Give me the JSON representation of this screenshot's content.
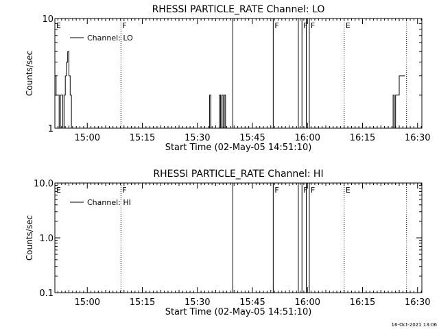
{
  "footer_timestamp": "16-Oct-2021 13:06",
  "chart_data": [
    {
      "type": "line",
      "title": "RHESSI PARTICLE_RATE Channel: LO",
      "xlabel": "Start Time (02-May-05 14:51:10)",
      "ylabel": "Counts/sec",
      "y_scale": "log",
      "ylim": [
        1,
        10
      ],
      "y_ticks": [
        "1",
        "10"
      ],
      "xlim": [
        "14:51:10",
        "16:31:10"
      ],
      "x_ticks": [
        "15:00",
        "15:15",
        "15:30",
        "15:45",
        "16:00",
        "16:15",
        "16:30"
      ],
      "legend": {
        "position": "top-left",
        "entries": [
          "Channel: LO"
        ]
      },
      "series": [
        {
          "name": "Channel: LO",
          "x": [
            "14:51:10",
            "14:51:30",
            "14:52:00",
            "14:52:20",
            "14:52:40",
            "14:53:00",
            "14:53:20",
            "14:53:40",
            "14:54:00",
            "14:54:20",
            "14:54:40",
            "14:55:00",
            "14:55:20",
            "14:55:40",
            "14:56:00",
            "15:33:00",
            "15:33:20",
            "15:33:40",
            "15:34:00",
            "15:34:20",
            "15:35:40",
            "15:36:00",
            "15:36:20",
            "15:36:40",
            "15:37:00",
            "15:37:20",
            "15:37:40",
            "15:38:00",
            "16:23:00",
            "16:23:20",
            "16:23:40",
            "16:24:00",
            "16:24:20",
            "16:24:40",
            "16:25:00",
            "16:25:20",
            "16:25:40",
            "16:26:00",
            "16:26:20"
          ],
          "y": [
            3,
            2,
            2,
            1,
            2,
            2,
            1,
            2,
            3,
            4,
            5,
            3,
            2,
            1,
            1,
            1,
            2,
            1,
            1,
            1,
            1,
            2,
            1,
            2,
            1,
            2,
            1,
            1,
            1,
            2,
            1,
            2,
            2,
            2,
            3,
            3,
            3,
            3,
            3
          ]
        }
      ],
      "annotations": [
        {
          "label": "E",
          "time": "14:51:10",
          "style": "none"
        },
        {
          "label": "F",
          "time": "15:09:10",
          "style": "dotted"
        },
        {
          "label": "",
          "time": "15:39:40",
          "style": "solid"
        },
        {
          "label": "F",
          "time": "15:50:40",
          "style": "solid"
        },
        {
          "label": "",
          "time": "15:57:30",
          "style": "solid"
        },
        {
          "label": "F",
          "time": "15:58:30",
          "style": "solid"
        },
        {
          "label": "",
          "time": "15:59:40",
          "style": "solid"
        },
        {
          "label": "F",
          "time": "16:00:30",
          "style": "solid"
        },
        {
          "label": "E",
          "time": "16:10:00",
          "style": "dotted"
        },
        {
          "label": "",
          "time": "16:27:00",
          "style": "dotted"
        }
      ]
    },
    {
      "type": "line",
      "title": "RHESSI PARTICLE_RATE Channel: HI",
      "xlabel": "Start Time (02-May-05 14:51:10)",
      "ylabel": "Counts/sec",
      "y_scale": "log",
      "ylim": [
        0.1,
        10
      ],
      "y_ticks": [
        "0.1",
        "1.0",
        "10.0"
      ],
      "xlim": [
        "14:51:10",
        "16:31:10"
      ],
      "x_ticks": [
        "15:00",
        "15:15",
        "15:30",
        "15:45",
        "16:00",
        "16:15",
        "16:30"
      ],
      "legend": {
        "position": "top-left",
        "entries": [
          "Channel: HI"
        ]
      },
      "series": [
        {
          "name": "Channel: HI",
          "x": [],
          "y": []
        }
      ],
      "annotations": [
        {
          "label": "E",
          "time": "14:51:10",
          "style": "none"
        },
        {
          "label": "F",
          "time": "15:09:10",
          "style": "dotted"
        },
        {
          "label": "",
          "time": "15:39:40",
          "style": "solid"
        },
        {
          "label": "F",
          "time": "15:50:40",
          "style": "solid"
        },
        {
          "label": "",
          "time": "15:57:30",
          "style": "solid"
        },
        {
          "label": "F",
          "time": "15:58:30",
          "style": "solid"
        },
        {
          "label": "",
          "time": "15:59:40",
          "style": "solid"
        },
        {
          "label": "F",
          "time": "16:00:30",
          "style": "solid"
        },
        {
          "label": "E",
          "time": "16:10:00",
          "style": "dotted"
        },
        {
          "label": "",
          "time": "16:27:00",
          "style": "dotted"
        }
      ]
    }
  ]
}
